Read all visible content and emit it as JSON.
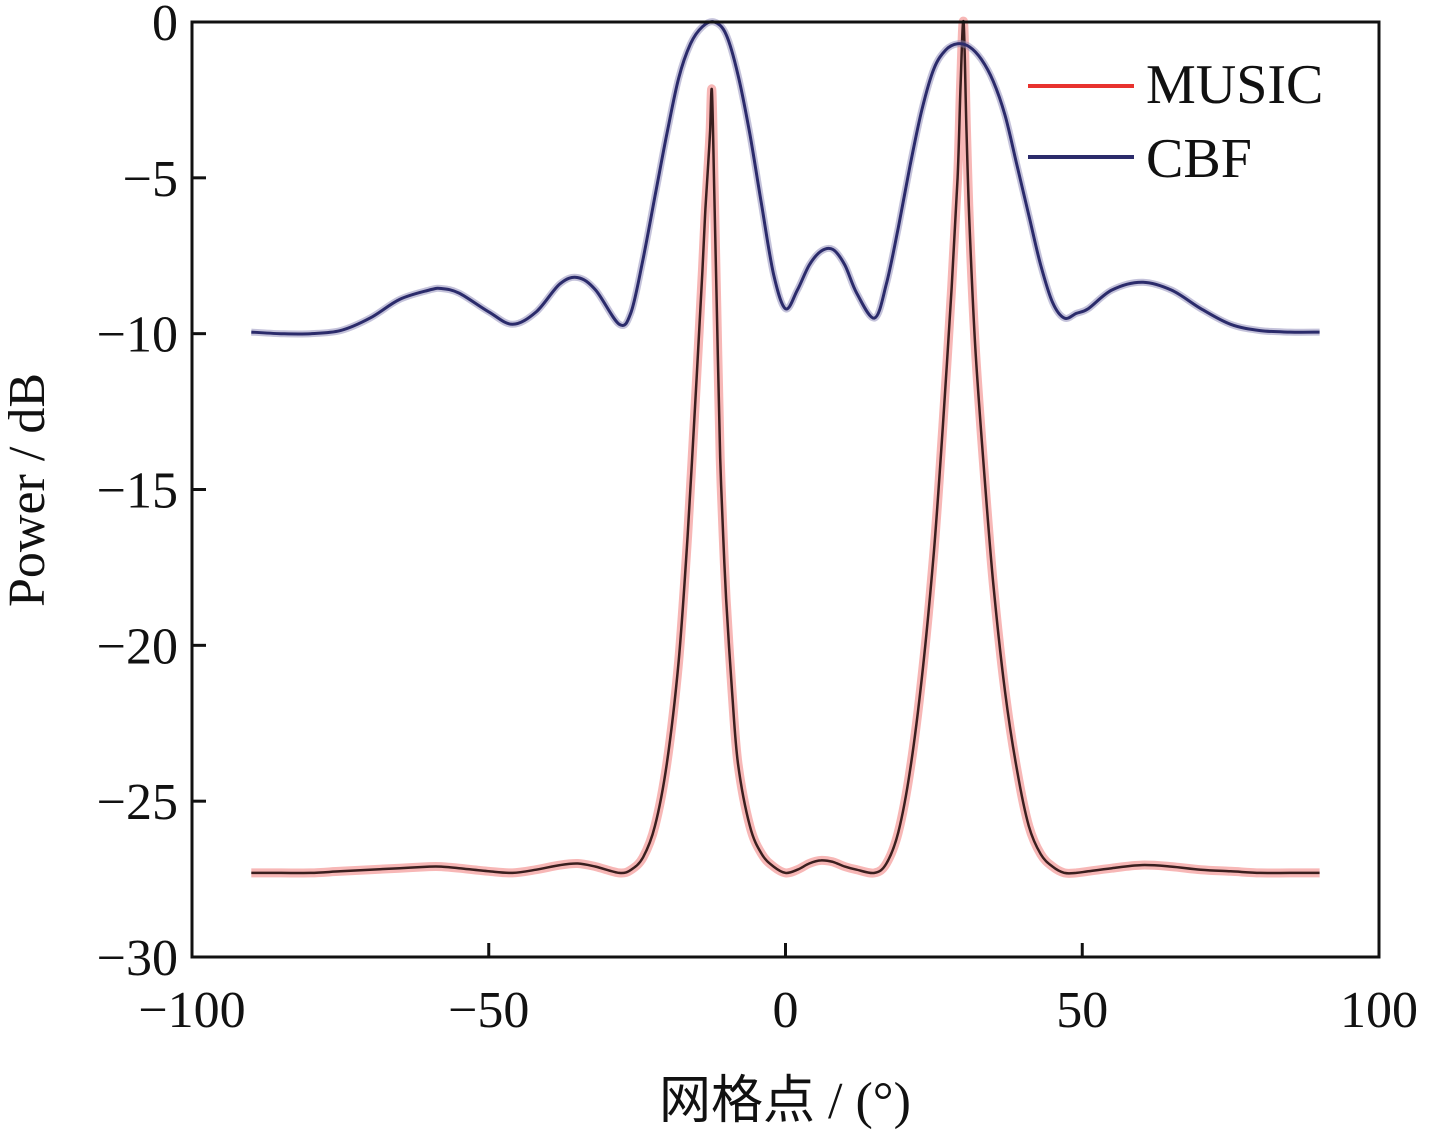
{
  "chart_data": {
    "type": "line",
    "xlabel": "网格点 / (°)",
    "ylabel": "Power / dB",
    "xlim": [
      -100,
      100
    ],
    "ylim": [
      -30,
      0
    ],
    "xticks": [
      -100,
      -50,
      0,
      50,
      100
    ],
    "yticks": [
      -30,
      -25,
      -20,
      -15,
      -10,
      -5,
      0
    ],
    "tick_labels_x": [
      "−100",
      "−50",
      "0",
      "50",
      "100"
    ],
    "tick_labels_y": [
      "−30",
      "−25",
      "−20",
      "−15",
      "−10",
      "−5",
      "0"
    ],
    "grid": false,
    "legend_position": "top-right",
    "series": [
      {
        "name": "MUSIC",
        "color": "#e8322e",
        "x": [
          -90,
          -85,
          -80,
          -75,
          -70,
          -65,
          -60,
          -58,
          -55,
          -50,
          -46,
          -42,
          -38,
          -35,
          -32,
          -28,
          -26,
          -24,
          -22,
          -20,
          -18,
          -16.5,
          -15,
          -14,
          -13.5,
          -13,
          -12.7,
          -12.4,
          -12,
          -11.6,
          -11.3,
          -11,
          -10.5,
          -10,
          -9,
          -8,
          -6,
          -4,
          -2,
          0,
          2,
          4,
          6,
          8,
          10,
          12,
          15,
          17,
          19,
          21,
          23,
          25,
          26.5,
          28,
          29,
          29.5,
          30,
          30.5,
          31,
          32,
          33.5,
          35,
          37,
          39,
          41,
          43,
          45,
          47,
          49,
          51,
          55,
          60,
          65,
          70,
          75,
          80,
          85,
          90
        ],
        "values": [
          -27.3,
          -27.3,
          -27.3,
          -27.25,
          -27.2,
          -27.15,
          -27.1,
          -27.1,
          -27.15,
          -27.25,
          -27.3,
          -27.2,
          -27.05,
          -27.0,
          -27.1,
          -27.3,
          -27.2,
          -26.8,
          -25.8,
          -23.8,
          -20.5,
          -16.5,
          -11.5,
          -8.0,
          -6.0,
          -4.5,
          -3.5,
          -2.2,
          -5.5,
          -9.0,
          -11.5,
          -14.0,
          -16.5,
          -18.5,
          -21.5,
          -23.8,
          -25.8,
          -26.7,
          -27.1,
          -27.3,
          -27.2,
          -27.0,
          -26.9,
          -26.95,
          -27.1,
          -27.2,
          -27.3,
          -27.0,
          -26.0,
          -24.0,
          -21.0,
          -17.0,
          -13.0,
          -8.5,
          -5.0,
          -2.0,
          0.0,
          -3.5,
          -6.5,
          -10.5,
          -14.5,
          -18.0,
          -21.5,
          -24.0,
          -25.8,
          -26.7,
          -27.1,
          -27.3,
          -27.3,
          -27.25,
          -27.15,
          -27.05,
          -27.1,
          -27.2,
          -27.25,
          -27.3,
          -27.3,
          -27.3
        ]
      },
      {
        "name": "CBF",
        "color": "#2b2b6b",
        "x": [
          -90,
          -85,
          -80,
          -75,
          -70,
          -65,
          -60,
          -58,
          -55,
          -50,
          -46,
          -42,
          -38,
          -35,
          -32,
          -28,
          -26,
          -24,
          -22,
          -20,
          -18,
          -16,
          -14,
          -12,
          -10,
          -8,
          -6,
          -4,
          -2,
          0,
          2,
          4,
          6,
          8,
          10,
          12,
          15,
          17,
          19,
          21,
          23,
          25,
          27,
          29,
          31,
          33,
          35,
          37,
          39,
          41,
          43,
          45,
          47,
          49,
          51,
          55,
          60,
          65,
          70,
          75,
          80,
          85,
          90
        ],
        "values": [
          -9.95,
          -10.0,
          -10.0,
          -9.9,
          -9.5,
          -8.9,
          -8.6,
          -8.55,
          -8.7,
          -9.3,
          -9.7,
          -9.3,
          -8.4,
          -8.2,
          -8.6,
          -9.7,
          -9.3,
          -7.6,
          -5.6,
          -3.6,
          -1.8,
          -0.7,
          -0.15,
          0.0,
          -0.4,
          -1.7,
          -3.6,
          -5.9,
          -8.1,
          -9.2,
          -8.6,
          -7.8,
          -7.35,
          -7.3,
          -7.8,
          -8.7,
          -9.5,
          -8.4,
          -6.6,
          -4.6,
          -2.8,
          -1.5,
          -0.9,
          -0.7,
          -0.8,
          -1.2,
          -1.9,
          -3.0,
          -4.6,
          -6.2,
          -7.8,
          -9.0,
          -9.5,
          -9.35,
          -9.2,
          -8.6,
          -8.35,
          -8.6,
          -9.2,
          -9.7,
          -9.9,
          -9.95,
          -9.95
        ]
      }
    ]
  }
}
